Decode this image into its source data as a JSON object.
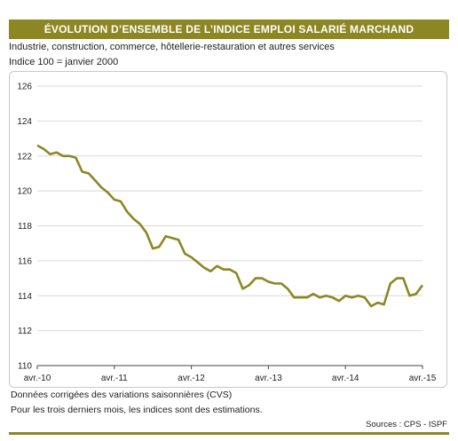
{
  "header": {
    "title": "ÉVOLUTION D’ENSEMBLE DE L’INDICE EMPLOI SALARIÉ MARCHAND",
    "subtitle1": "Industrie, construction, commerce, hôtellerie-restauration et autres services",
    "subtitle2": "Indice 100 = janvier 2000"
  },
  "footer": {
    "note1": "Données corrigées des variations saisonnières (CVS)",
    "note2": "Pour les trois derniers mois, les indices sont des estimations.",
    "sources": "Sources : CPS - ISPF"
  },
  "colors": {
    "accent": "#8c8623",
    "line": "#8c8623",
    "grid": "#d9d9d9"
  },
  "chart_data": {
    "type": "line",
    "title": "",
    "xlabel": "",
    "ylabel": "",
    "ylim": [
      110,
      126
    ],
    "yticks": [
      110,
      112,
      114,
      116,
      118,
      120,
      122,
      124,
      126
    ],
    "grid": "horizontal",
    "x_tick_labels": [
      "avr.-10",
      "avr.-11",
      "avr.-12",
      "avr.-13",
      "avr.-14",
      "avr.-15"
    ],
    "x_tick_months": [
      0,
      12,
      24,
      36,
      48,
      60
    ],
    "x_start": "2010-04",
    "x_end": "2015-04",
    "series": [
      {
        "values": [
          122.6,
          122.4,
          122.1,
          122.2,
          122.0,
          122.0,
          121.9,
          121.1,
          121.0,
          120.6,
          120.2,
          119.9,
          119.5,
          119.4,
          118.8,
          118.4,
          118.1,
          117.6,
          116.7,
          116.8,
          117.4,
          117.3,
          117.2,
          116.4,
          116.2,
          115.9,
          115.6,
          115.4,
          115.7,
          115.5,
          115.5,
          115.3,
          114.4,
          114.6,
          115.0,
          115.0,
          114.8,
          114.7,
          114.7,
          114.4,
          113.9,
          113.9,
          113.9,
          114.1,
          113.9,
          114.0,
          113.9,
          113.7,
          114.0,
          113.9,
          114.0,
          113.9,
          113.4,
          113.6,
          113.5,
          114.7,
          115.0,
          115.0,
          114.0,
          114.1,
          114.6
        ]
      }
    ]
  }
}
